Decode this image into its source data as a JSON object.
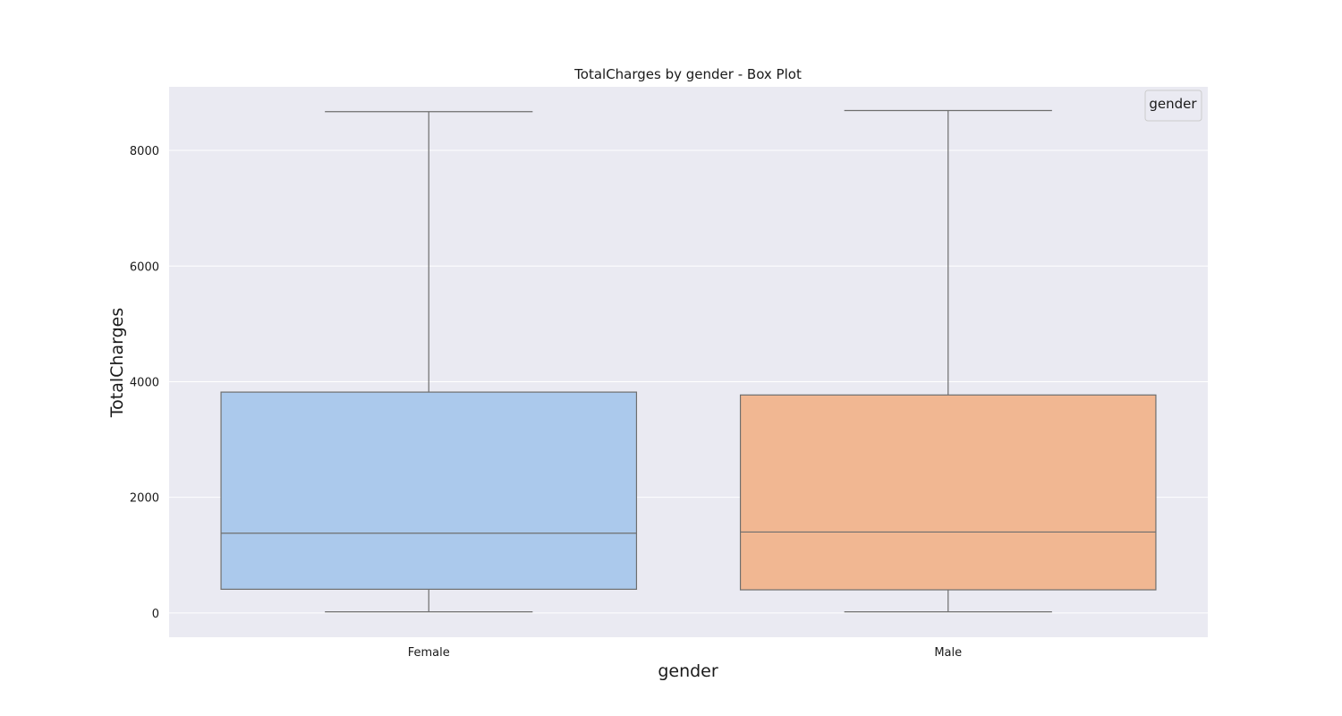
{
  "chart_data": {
    "type": "box",
    "title": "TotalCharges by gender - Box Plot",
    "xlabel": "gender",
    "ylabel": "TotalCharges",
    "categories": [
      "Female",
      "Male"
    ],
    "boxes": [
      {
        "category": "Female",
        "min": 18.8,
        "q1": 410,
        "median": 1380,
        "q3": 3820,
        "max": 8670,
        "color": "#abc9ec"
      },
      {
        "category": "Male",
        "min": 18.8,
        "q1": 400,
        "median": 1400,
        "q3": 3770,
        "max": 8690,
        "color": "#f1b792"
      }
    ],
    "yticks": [
      0,
      2000,
      4000,
      6000,
      8000
    ],
    "ylim": [
      -420,
      9100
    ],
    "grid": true,
    "legend": {
      "title": "gender",
      "placement": "top-right"
    },
    "colors": {
      "background": "#eaeaf2",
      "grid": "#ffffff",
      "line": "#6e6e6e"
    }
  }
}
